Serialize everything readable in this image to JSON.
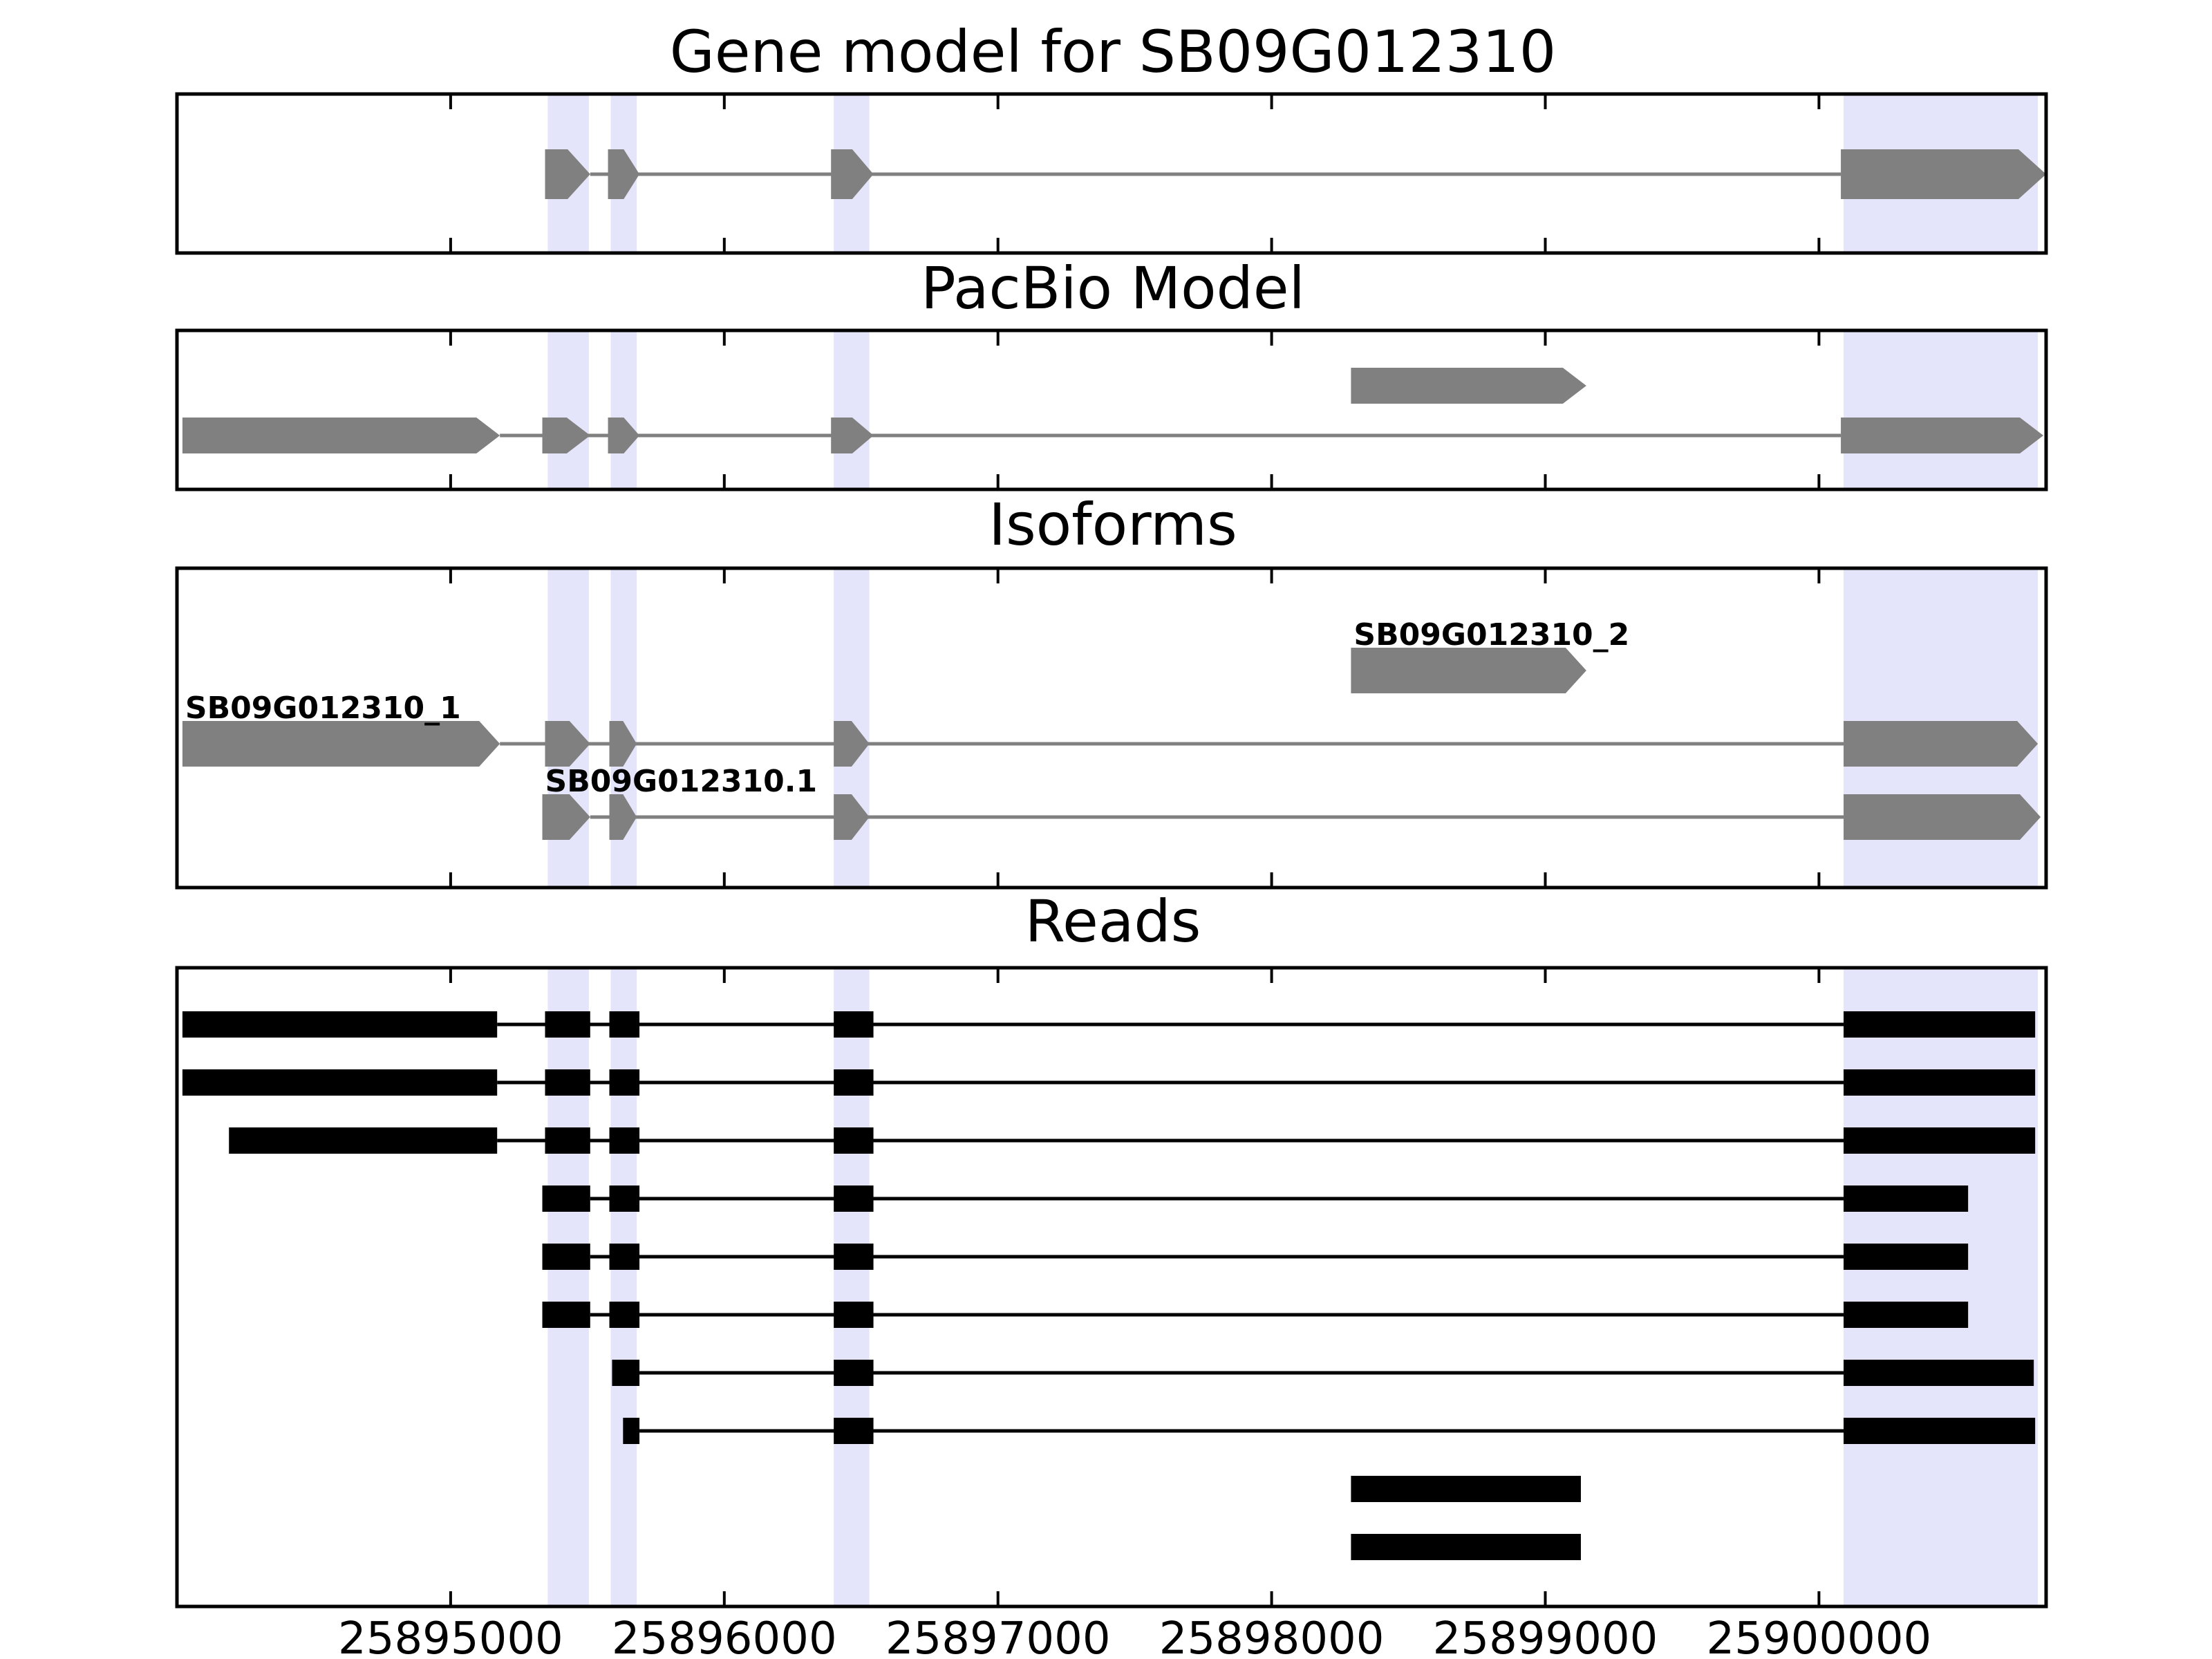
{
  "chart_data": {
    "type": "gene-track",
    "x_axis": {
      "range": [
        25894000,
        25900830
      ],
      "ticks": [
        25895000,
        25896000,
        25897000,
        25898000,
        25899000,
        25900000
      ],
      "tick_labels": [
        "25895000",
        "25896000",
        "25897000",
        "25898000",
        "25899000",
        "25900000"
      ]
    },
    "colors": {
      "feature": "#808080",
      "read": "#000000",
      "highlight": "#e4e4fa",
      "axes": "#000000"
    },
    "highlight_regions": [
      [
        25895355,
        25895505
      ],
      [
        25895585,
        25895680
      ],
      [
        25896400,
        25896530
      ],
      [
        25900090,
        25900800
      ]
    ],
    "panels": [
      {
        "title": "Gene model for SB09G012310",
        "kind": "gene",
        "rows": 1,
        "transcripts": [
          {
            "row": 0,
            "exons": [
              [
                25895345,
                25895510
              ],
              [
                25895575,
                25895690
              ],
              [
                25896390,
                25896545
              ],
              [
                25900080,
                25900830
              ]
            ]
          }
        ]
      },
      {
        "title": "PacBio Model",
        "kind": "gene",
        "rows": 2,
        "transcripts": [
          {
            "row": 0,
            "exons": [
              [
                25898290,
                25899150
              ]
            ]
          },
          {
            "row": 1,
            "exons": [
              [
                25894020,
                25895180
              ],
              [
                25895335,
                25895510
              ],
              [
                25895575,
                25895690
              ],
              [
                25896390,
                25896545
              ],
              [
                25900080,
                25900820
              ]
            ]
          }
        ]
      },
      {
        "title": "Isoforms",
        "kind": "gene",
        "rows": 3,
        "transcripts": [
          {
            "row": 0,
            "label": "SB09G012310_2",
            "exons": [
              [
                25898290,
                25899150
              ]
            ]
          },
          {
            "row": 1,
            "label": "SB09G012310_1",
            "exons": [
              [
                25894020,
                25895180
              ],
              [
                25895345,
                25895510
              ],
              [
                25895580,
                25895680
              ],
              [
                25896400,
                25896530
              ],
              [
                25900090,
                25900800
              ]
            ]
          },
          {
            "row": 2,
            "label": "SB09G012310.1",
            "exons": [
              [
                25895335,
                25895510
              ],
              [
                25895580,
                25895680
              ],
              [
                25896400,
                25896530
              ],
              [
                25900090,
                25900810
              ]
            ]
          }
        ]
      },
      {
        "title": "Reads",
        "kind": "reads",
        "rows": 10,
        "transcripts": [
          {
            "row": 0,
            "exons": [
              [
                25894020,
                25895170
              ],
              [
                25895345,
                25895510
              ],
              [
                25895580,
                25895690
              ],
              [
                25896400,
                25896545
              ],
              [
                25900090,
                25900790
              ]
            ]
          },
          {
            "row": 1,
            "exons": [
              [
                25894020,
                25895170
              ],
              [
                25895345,
                25895510
              ],
              [
                25895580,
                25895690
              ],
              [
                25896400,
                25896545
              ],
              [
                25900090,
                25900790
              ]
            ]
          },
          {
            "row": 2,
            "exons": [
              [
                25894190,
                25895170
              ],
              [
                25895345,
                25895510
              ],
              [
                25895580,
                25895690
              ],
              [
                25896400,
                25896545
              ],
              [
                25900090,
                25900790
              ]
            ]
          },
          {
            "row": 3,
            "exons": [
              [
                25895335,
                25895510
              ],
              [
                25895580,
                25895690
              ],
              [
                25896400,
                25896545
              ],
              [
                25900090,
                25900545
              ]
            ]
          },
          {
            "row": 4,
            "exons": [
              [
                25895335,
                25895510
              ],
              [
                25895580,
                25895690
              ],
              [
                25896400,
                25896545
              ],
              [
                25900090,
                25900545
              ]
            ]
          },
          {
            "row": 5,
            "exons": [
              [
                25895335,
                25895510
              ],
              [
                25895580,
                25895690
              ],
              [
                25896400,
                25896545
              ],
              [
                25900090,
                25900545
              ]
            ]
          },
          {
            "row": 6,
            "exons": [
              [
                25895590,
                25895690
              ],
              [
                25896400,
                25896545
              ],
              [
                25900090,
                25900785
              ]
            ]
          },
          {
            "row": 7,
            "exons": [
              [
                25895630,
                25895690
              ],
              [
                25896400,
                25896545
              ],
              [
                25900090,
                25900790
              ]
            ]
          },
          {
            "row": 8,
            "exons": [
              [
                25898290,
                25899130
              ]
            ]
          },
          {
            "row": 9,
            "exons": [
              [
                25898290,
                25899130
              ]
            ]
          }
        ]
      }
    ]
  }
}
